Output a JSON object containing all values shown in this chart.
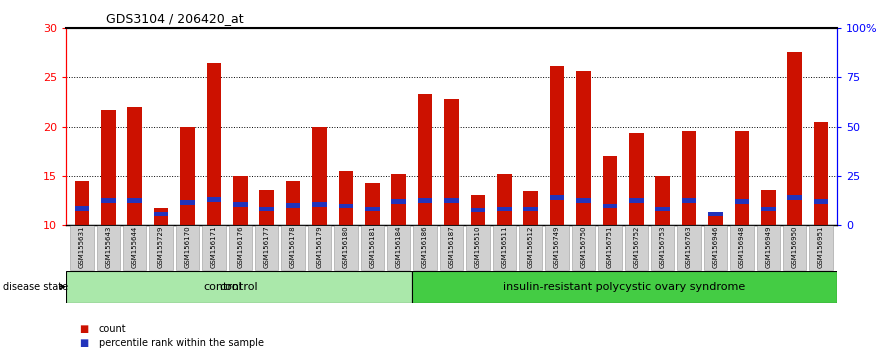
{
  "title": "GDS3104 / 206420_at",
  "samples": [
    "GSM155631",
    "GSM155643",
    "GSM155644",
    "GSM155729",
    "GSM156170",
    "GSM156171",
    "GSM156176",
    "GSM156177",
    "GSM156178",
    "GSM156179",
    "GSM156180",
    "GSM156181",
    "GSM156184",
    "GSM156186",
    "GSM156187",
    "GSM156510",
    "GSM156511",
    "GSM156512",
    "GSM156749",
    "GSM156750",
    "GSM156751",
    "GSM156752",
    "GSM156753",
    "GSM156763",
    "GSM156946",
    "GSM156948",
    "GSM156949",
    "GSM156950",
    "GSM156951"
  ],
  "count_values": [
    14.5,
    21.7,
    22.0,
    11.7,
    20.0,
    26.5,
    15.0,
    13.5,
    14.5,
    20.0,
    15.5,
    14.3,
    15.2,
    23.3,
    22.8,
    13.0,
    15.2,
    13.4,
    26.2,
    25.7,
    17.0,
    19.3,
    15.0,
    19.5,
    11.2,
    19.5,
    13.5,
    27.6,
    20.5
  ],
  "percentile_values": [
    11.7,
    12.5,
    12.5,
    11.1,
    12.3,
    12.6,
    12.1,
    11.6,
    12.0,
    12.1,
    11.9,
    11.6,
    12.4,
    12.5,
    12.5,
    11.5,
    11.6,
    11.6,
    12.8,
    12.5,
    11.9,
    12.5,
    11.6,
    12.5,
    11.1,
    12.4,
    11.6,
    12.8,
    12.4
  ],
  "percentile_heights": [
    0.5,
    0.5,
    0.5,
    0.4,
    0.5,
    0.5,
    0.5,
    0.4,
    0.5,
    0.5,
    0.4,
    0.4,
    0.5,
    0.5,
    0.5,
    0.4,
    0.4,
    0.4,
    0.5,
    0.5,
    0.4,
    0.5,
    0.4,
    0.5,
    0.4,
    0.5,
    0.4,
    0.5,
    0.5
  ],
  "num_control": 13,
  "bar_color": "#cc1100",
  "percentile_color": "#2233bb",
  "bar_width": 0.55,
  "ylim": [
    10,
    30
  ],
  "yticks": [
    10,
    15,
    20,
    25,
    30
  ],
  "right_yticks": [
    0,
    25,
    50,
    75,
    100
  ],
  "right_ytick_labels": [
    "0",
    "25",
    "50",
    "75",
    "100%"
  ],
  "control_label": "control",
  "disease_label": "insulin-resistant polycystic ovary syndrome",
  "disease_state_label": "disease state",
  "legend_count": "count",
  "legend_percentile": "percentile rank within the sample"
}
